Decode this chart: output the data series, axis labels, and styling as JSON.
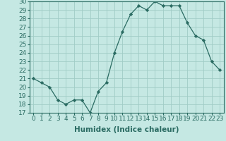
{
  "title": "",
  "xlabel": "Humidex (Indice chaleur)",
  "x_values": [
    0,
    1,
    2,
    3,
    4,
    5,
    6,
    7,
    8,
    9,
    10,
    11,
    12,
    13,
    14,
    15,
    16,
    17,
    18,
    19,
    20,
    21,
    22,
    23
  ],
  "y_values": [
    21,
    20.5,
    20,
    18.5,
    18,
    18.5,
    18.5,
    17,
    19.5,
    20.5,
    24,
    26.5,
    28.5,
    29.5,
    29,
    30,
    29.5,
    29.5,
    29.5,
    27.5,
    26,
    25.5,
    23,
    22
  ],
  "ylim": [
    17,
    30
  ],
  "yticks": [
    17,
    18,
    19,
    20,
    21,
    22,
    23,
    24,
    25,
    26,
    27,
    28,
    29,
    30
  ],
  "line_color": "#2a6b62",
  "marker": "D",
  "marker_size": 2.2,
  "bg_color": "#c5e8e3",
  "grid_color": "#a0ccc6",
  "tick_label_fontsize": 6.5,
  "xlabel_fontsize": 7.5
}
